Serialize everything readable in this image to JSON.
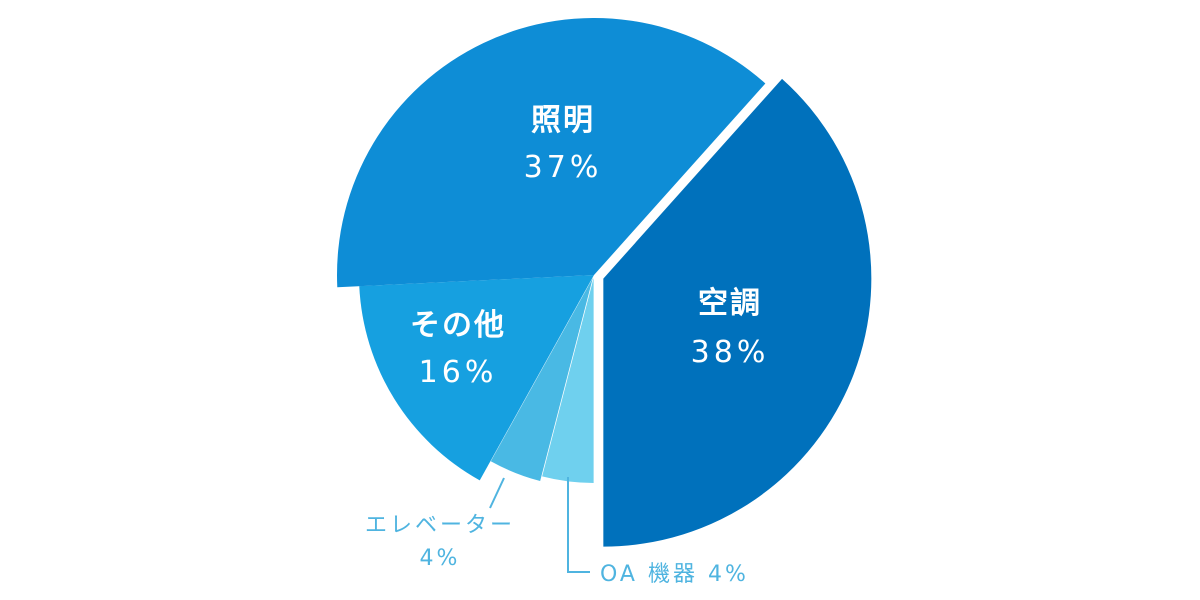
{
  "chart_data": {
    "type": "pie",
    "title": "",
    "slices": [
      {
        "name": "空調",
        "value": 38,
        "value_label": "38%",
        "color": "#0071bc"
      },
      {
        "name": "OA機器",
        "value": 4,
        "value_label": "4%",
        "color": "#6fd0ee"
      },
      {
        "name": "エレベーター",
        "value": 4,
        "value_label": "4%",
        "color": "#49b9e4"
      },
      {
        "name": "その他",
        "value": 16,
        "value_label": "16%",
        "color": "#16a0e0"
      },
      {
        "name": "照明",
        "value": 37,
        "value_label": "37%",
        "color": "#0e8dd6"
      }
    ],
    "outer_labels": {
      "oa": {
        "name": "OA機器",
        "value_label": "4%",
        "text": "OA 機器 4%"
      },
      "elevator": {
        "name": "エレベーター",
        "value_label": "4%"
      }
    }
  }
}
